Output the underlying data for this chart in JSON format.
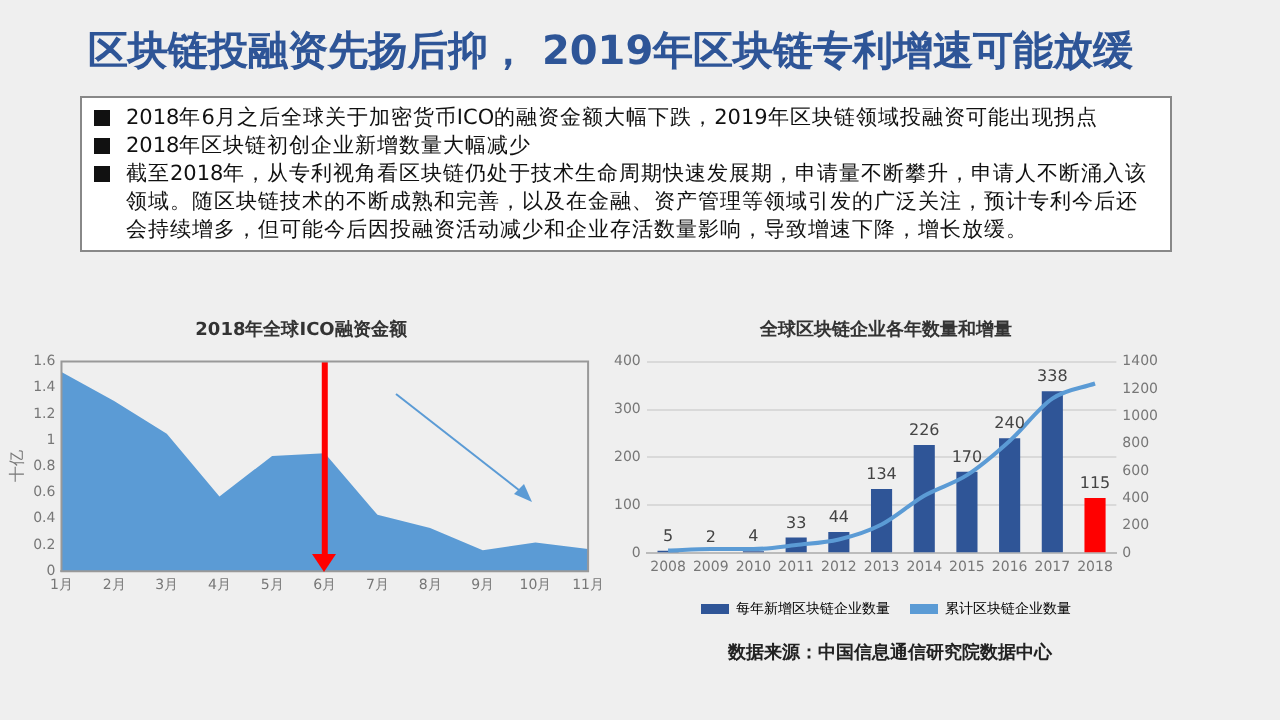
{
  "chart_data": [
    {
      "type": "other",
      "title": "区块链投融资先扬后抑， 2019年区块链专利增速可能放缓",
      "annotations": [
        "2018年6月之后全球关于加密货币ICO的融资金额大幅下跌，2019年区块链领域投融资可能出现拐点",
        "2018年区块链初创企业新增数量大幅减少",
        "截至2018年，从专利视角看区块链仍处于技术生命周期快速发展期，申请量不断攀升，申请人不断涌入该领域。随区块链技术的不断成熟和完善，以及在金融、资产管理等领域引发的广泛关注，预计专利今后还会持续增多，但可能今后因投融资活动减少和企业存活数量影响，导致增速下降，增长放缓。"
      ]
    },
    {
      "type": "area",
      "title": "2018年全球ICO融资金额",
      "ylabel": "十亿",
      "categories": [
        "1月",
        "2月",
        "3月",
        "4月",
        "5月",
        "6月",
        "7月",
        "8月",
        "9月",
        "10月",
        "11月"
      ],
      "values": [
        1.52,
        1.3,
        1.05,
        0.57,
        0.88,
        0.9,
        0.43,
        0.33,
        0.16,
        0.22,
        0.17
      ],
      "color": "#5b9bd5",
      "ylim": [
        0,
        1.6
      ],
      "yticks": [
        0,
        0.2,
        0.4,
        0.6,
        0.8,
        1,
        1.2,
        1.4,
        1.6
      ],
      "grid": false,
      "ref_lines": [
        {
          "axis": "x",
          "value": "6月",
          "color": "#ff0000"
        }
      ]
    },
    {
      "type": "bar",
      "title": "全球区块链企业各年数量和增量",
      "categories": [
        "2008",
        "2009",
        "2010",
        "2011",
        "2012",
        "2013",
        "2014",
        "2015",
        "2016",
        "2017",
        "2018"
      ],
      "series": [
        {
          "name": "每年新增区块链企业数量",
          "type": "bar",
          "color": "#2f5597",
          "colors": [
            "#2f5597",
            "#2f5597",
            "#2f5597",
            "#2f5597",
            "#2f5597",
            "#2f5597",
            "#2f5597",
            "#2f5597",
            "#2f5597",
            "#2f5597",
            "#ff0000"
          ],
          "values": [
            5,
            2,
            4,
            33,
            44,
            134,
            226,
            170,
            240,
            338,
            115
          ],
          "value_labels": [
            "5",
            "2",
            "4",
            "33",
            "44",
            "134",
            "226",
            "170",
            "240",
            "338",
            "115"
          ]
        },
        {
          "name": "累计区块链企业数量",
          "type": "line",
          "axis": "y2",
          "color": "#5b9bd5",
          "values": [
            20,
            30,
            30,
            60,
            100,
            210,
            420,
            570,
            820,
            1130,
            1240
          ]
        }
      ],
      "ylim": [
        0,
        400
      ],
      "yticks": [
        0,
        100,
        200,
        300,
        400
      ],
      "y2lim": [
        0,
        1400
      ],
      "y2ticks": [
        0,
        200,
        400,
        600,
        800,
        1000,
        1200,
        1400
      ],
      "grid": "y",
      "legend": "bottom",
      "marker": "none",
      "annotations": [
        "数据来源：中国信息通信研究院数据中心"
      ]
    }
  ]
}
